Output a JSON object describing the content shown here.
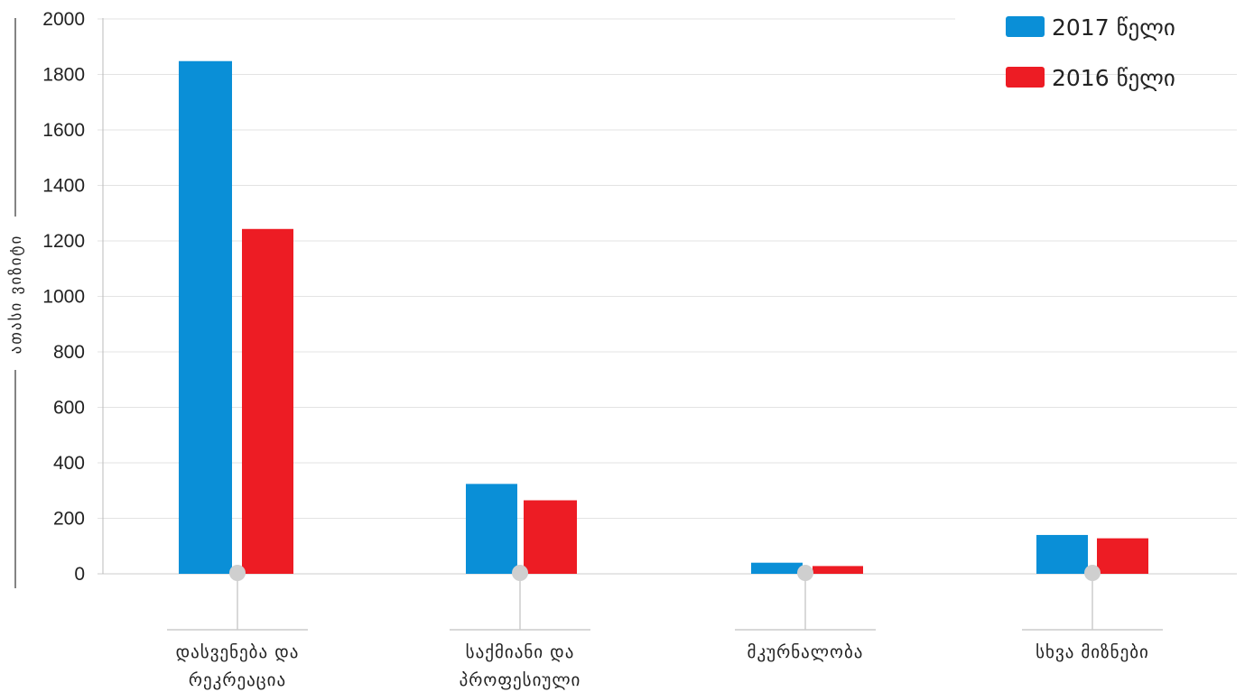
{
  "chart_data": {
    "type": "bar",
    "ylabel": "ათასი ვიზიტი",
    "xlabel": "",
    "ylim": [
      0,
      2000
    ],
    "yticks": [
      0,
      200,
      400,
      600,
      800,
      1000,
      1200,
      1400,
      1600,
      1800,
      2000
    ],
    "grid": true,
    "legend_position": "top-right",
    "categories": [
      [
        "დასვენება და",
        "რეკრეაცია"
      ],
      [
        "საქმიანი და",
        "პროფესიული"
      ],
      [
        "მკურნალობა"
      ],
      [
        "სხვა მიზნები"
      ]
    ],
    "series": [
      {
        "name": "2017 წელი",
        "color": "#0a8fd7",
        "values": [
          1848,
          324,
          40,
          140
        ]
      },
      {
        "name": "2016 წელი",
        "color": "#ed1c24",
        "values": [
          1243,
          265,
          28,
          128
        ]
      }
    ]
  }
}
